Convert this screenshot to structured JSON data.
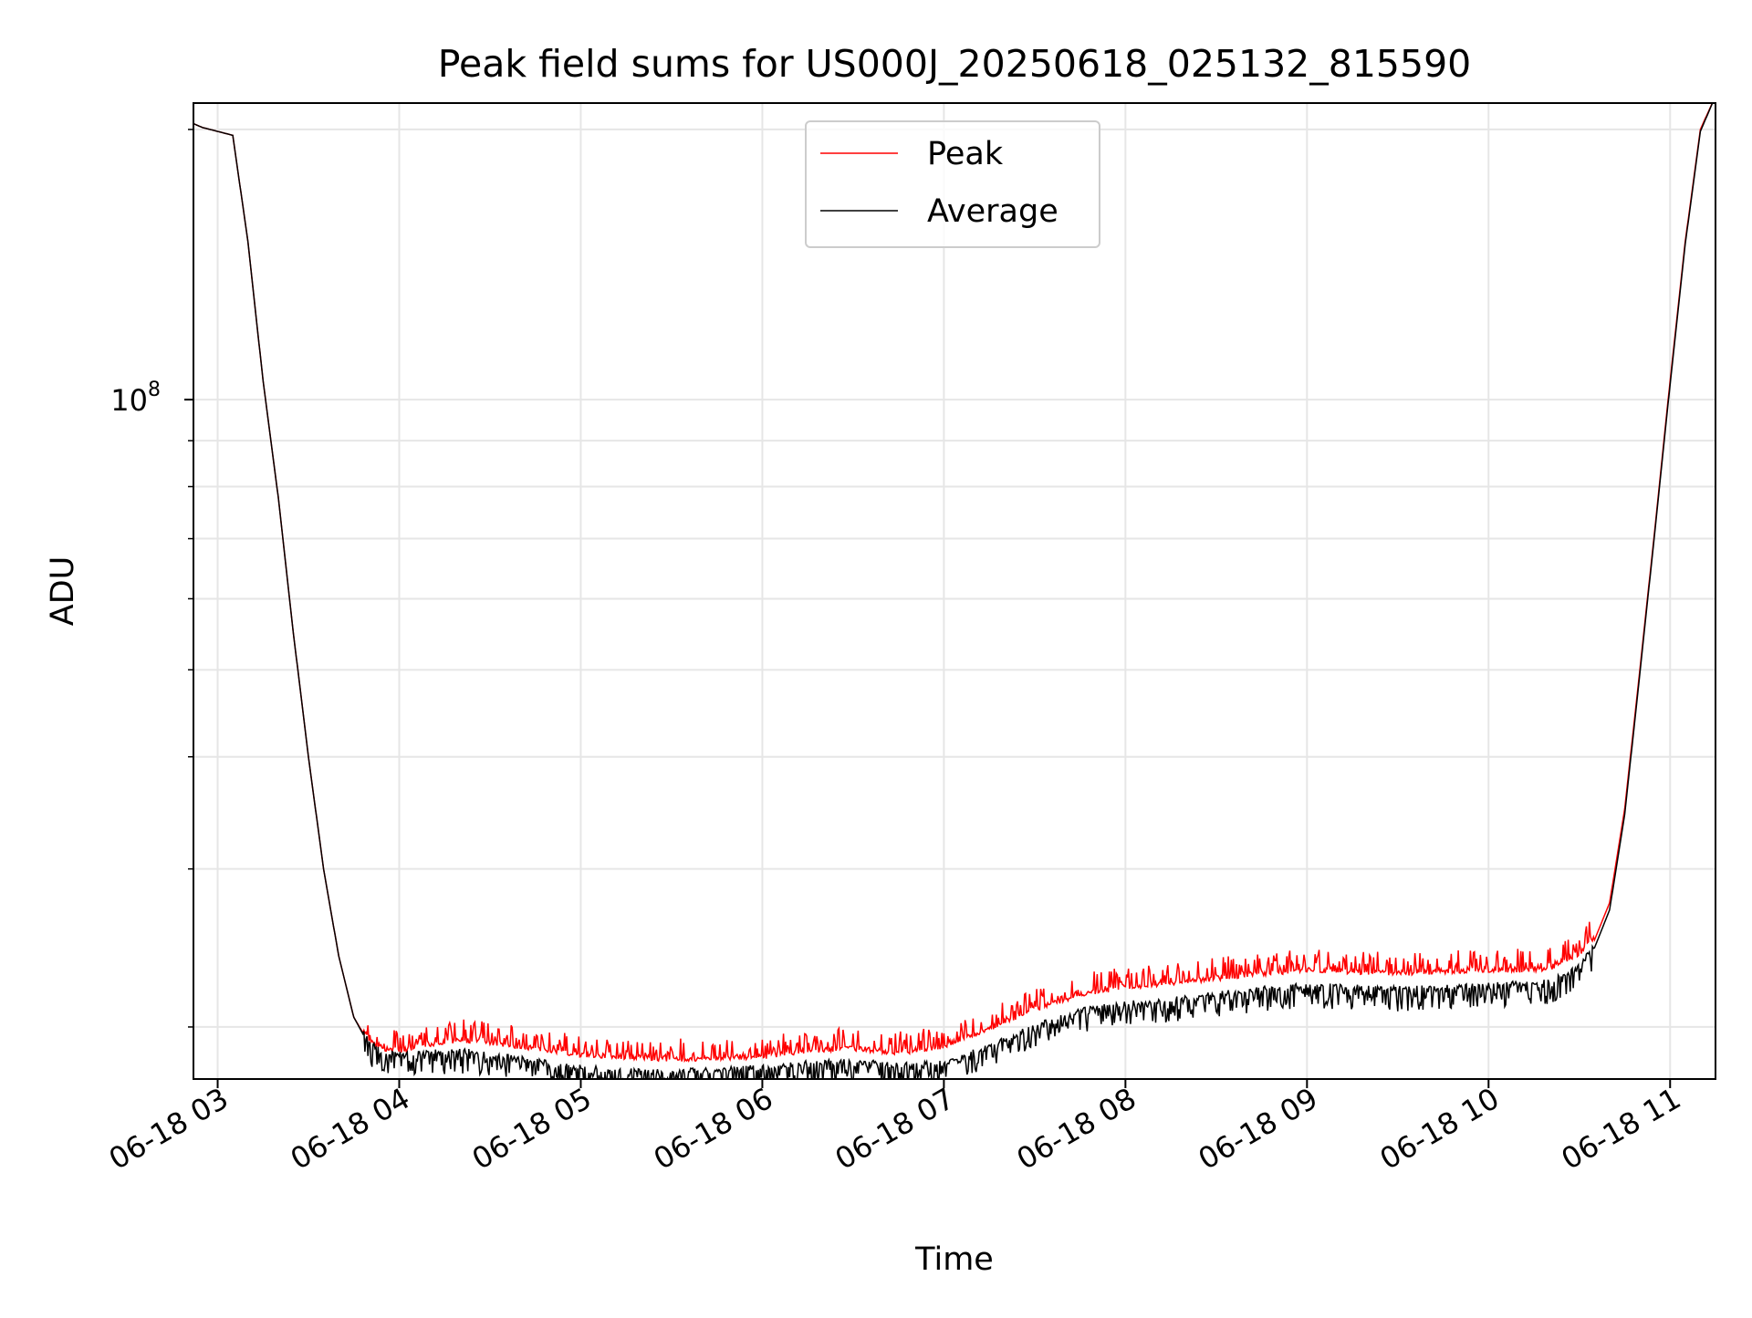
{
  "chart_data": {
    "type": "line",
    "title": "Peak field sums for US000J_20250618_025132_815590",
    "xlabel": "Time",
    "ylabel": "ADU",
    "x_range": [
      "06-18 02:52",
      "06-18 11:15"
    ],
    "x_ticks": [
      "06-18 03",
      "06-18 04",
      "06-18 05",
      "06-18 06",
      "06-18 07",
      "06-18 08",
      "06-18 09",
      "06-18 10",
      "06-18 11"
    ],
    "y_scale": "log",
    "y_range": [
      17500000,
      214000000
    ],
    "y_ticks": [
      {
        "value": 100000000,
        "base": "10",
        "exponent": "8"
      }
    ],
    "grid": true,
    "legend_position": "upper center",
    "series": [
      {
        "name": "Peak",
        "color": "#ff0000",
        "x": [
          "06-18 02:52",
          "06-18 02:55",
          "06-18 03:00",
          "06-18 03:05",
          "06-18 03:10",
          "06-18 03:15",
          "06-18 03:20",
          "06-18 03:25",
          "06-18 03:30",
          "06-18 03:35",
          "06-18 03:40",
          "06-18 03:45",
          "06-18 03:50",
          "06-18 03:55",
          "06-18 04:00",
          "06-18 04:10",
          "06-18 04:20",
          "06-18 04:30",
          "06-18 04:40",
          "06-18 04:50",
          "06-18 05:00",
          "06-18 05:15",
          "06-18 05:30",
          "06-18 05:45",
          "06-18 06:00",
          "06-18 06:15",
          "06-18 06:30",
          "06-18 06:45",
          "06-18 07:00",
          "06-18 07:15",
          "06-18 07:30",
          "06-18 07:45",
          "06-18 08:00",
          "06-18 08:15",
          "06-18 08:30",
          "06-18 08:45",
          "06-18 09:00",
          "06-18 09:15",
          "06-18 09:30",
          "06-18 09:45",
          "06-18 10:00",
          "06-18 10:10",
          "06-18 10:20",
          "06-18 10:30",
          "06-18 10:35",
          "06-18 10:40",
          "06-18 10:45",
          "06-18 10:50",
          "06-18 10:55",
          "06-18 11:00",
          "06-18 11:05",
          "06-18 11:10",
          "06-18 11:15"
        ],
        "y": [
          203000000,
          201000000,
          199000000,
          197000000,
          150000000,
          105000000,
          78000000,
          55000000,
          40000000,
          30000000,
          24000000,
          20500000,
          19200000,
          18800000,
          18700000,
          19000000,
          19200000,
          19100000,
          18900000,
          18700000,
          18500000,
          18400000,
          18300000,
          18300000,
          18400000,
          18700000,
          18800000,
          18600000,
          18900000,
          19800000,
          20800000,
          21600000,
          22000000,
          22200000,
          22500000,
          22800000,
          23000000,
          22900000,
          22800000,
          22900000,
          23000000,
          23000000,
          23100000,
          24000000,
          25000000,
          27500000,
          35000000,
          50000000,
          72000000,
          105000000,
          150000000,
          200000000,
          218000000
        ]
      },
      {
        "name": "Average",
        "color": "#000000",
        "x": [
          "06-18 02:52",
          "06-18 02:55",
          "06-18 03:00",
          "06-18 03:05",
          "06-18 03:10",
          "06-18 03:15",
          "06-18 03:20",
          "06-18 03:25",
          "06-18 03:30",
          "06-18 03:35",
          "06-18 03:40",
          "06-18 03:45",
          "06-18 03:50",
          "06-18 03:55",
          "06-18 04:00",
          "06-18 04:10",
          "06-18 04:20",
          "06-18 04:30",
          "06-18 04:40",
          "06-18 04:50",
          "06-18 05:00",
          "06-18 05:15",
          "06-18 05:30",
          "06-18 05:45",
          "06-18 06:00",
          "06-18 06:15",
          "06-18 06:30",
          "06-18 06:45",
          "06-18 07:00",
          "06-18 07:15",
          "06-18 07:30",
          "06-18 07:45",
          "06-18 08:00",
          "06-18 08:15",
          "06-18 08:30",
          "06-18 08:45",
          "06-18 09:00",
          "06-18 09:15",
          "06-18 09:30",
          "06-18 09:45",
          "06-18 10:00",
          "06-18 10:10",
          "06-18 10:20",
          "06-18 10:30",
          "06-18 10:35",
          "06-18 10:40",
          "06-18 10:45",
          "06-18 10:50",
          "06-18 10:55",
          "06-18 11:00",
          "06-18 11:05",
          "06-18 11:10",
          "06-18 11:15"
        ],
        "y": [
          203000000,
          201000000,
          199000000,
          197000000,
          150000000,
          105000000,
          78000000,
          55000000,
          40000000,
          30000000,
          24000000,
          20500000,
          19100000,
          18600000,
          18500000,
          18600000,
          18700000,
          18500000,
          18300000,
          18100000,
          17900000,
          17750000,
          17700000,
          17800000,
          17900000,
          18100000,
          18200000,
          18000000,
          18100000,
          18900000,
          19900000,
          20700000,
          21100000,
          21300000,
          21600000,
          21900000,
          22100000,
          22000000,
          21900000,
          22000000,
          22100000,
          22200000,
          22300000,
          23200000,
          24500000,
          27000000,
          34500000,
          49500000,
          71500000,
          104000000,
          149000000,
          199000000,
          218000000
        ]
      }
    ]
  }
}
